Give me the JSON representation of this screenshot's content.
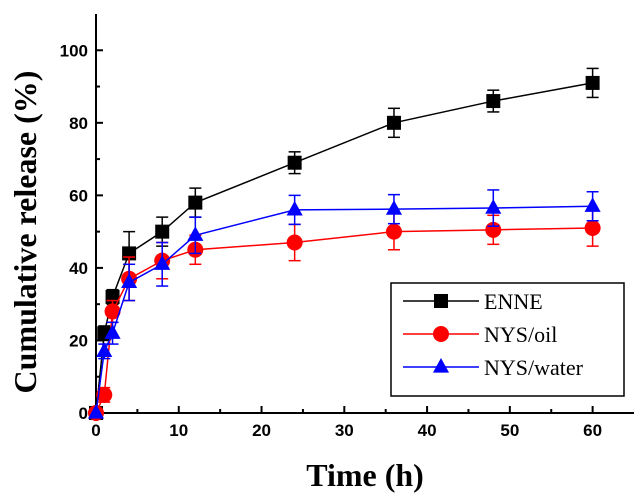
{
  "chart_data": {
    "type": "line",
    "xlabel": "Time (h)",
    "ylabel": "Cumulative release (%)",
    "xlim": [
      0,
      65
    ],
    "ylim": [
      0,
      110
    ],
    "xticks": [
      0,
      10,
      20,
      30,
      40,
      50,
      60
    ],
    "yticks": [
      0,
      20,
      40,
      60,
      80,
      100
    ],
    "grid": false,
    "legend_position": "bottom-right",
    "series": [
      {
        "name": "ENNE",
        "color": "#000000",
        "marker": "square",
        "x": [
          0,
          1,
          2,
          4,
          8,
          12,
          24,
          36,
          48,
          60
        ],
        "y": [
          0,
          22,
          32,
          44,
          50,
          58,
          69,
          80,
          86,
          91
        ],
        "err": [
          0,
          2,
          2,
          6,
          4,
          4,
          3,
          4,
          3,
          4
        ]
      },
      {
        "name": "NYS/oil",
        "color": "#ff0000",
        "marker": "circle",
        "x": [
          0,
          1,
          2,
          4,
          8,
          12,
          24,
          36,
          48,
          60
        ],
        "y": [
          0,
          5,
          28,
          37,
          42,
          45,
          47,
          50,
          50.5,
          51
        ],
        "err": [
          0,
          2,
          3,
          6,
          5,
          4,
          5,
          5,
          4,
          5
        ]
      },
      {
        "name": "NYS/water",
        "color": "#0000ff",
        "marker": "triangle",
        "x": [
          0,
          1,
          2,
          4,
          8,
          12,
          24,
          36,
          48,
          60
        ],
        "y": [
          0,
          17,
          22,
          36,
          41,
          49,
          56,
          56.2,
          56.5,
          57
        ],
        "err": [
          0,
          2,
          3,
          5,
          6,
          5,
          4,
          4,
          5,
          4
        ]
      }
    ]
  }
}
